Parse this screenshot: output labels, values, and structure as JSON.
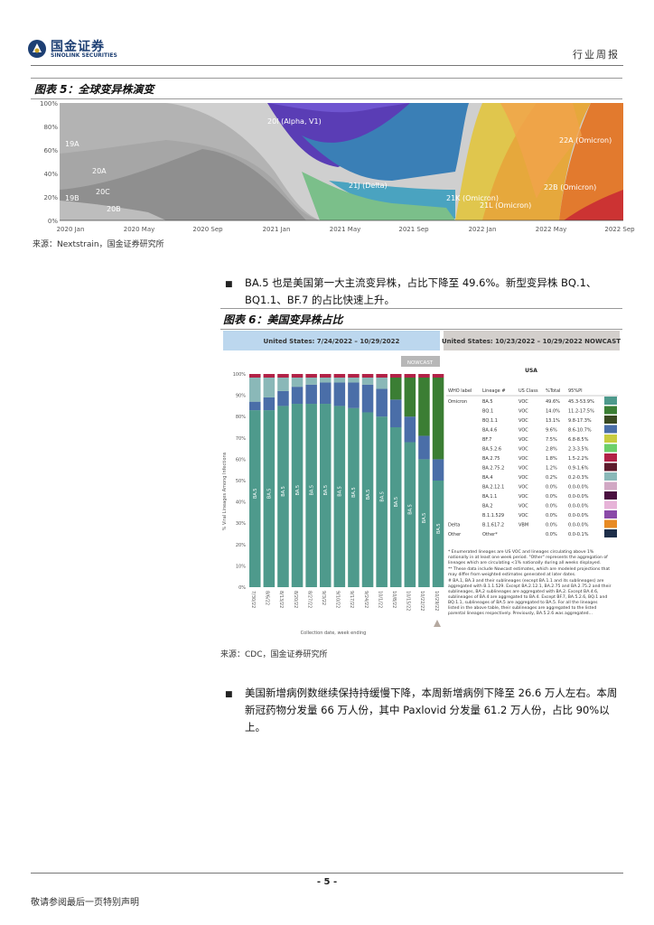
{
  "header": {
    "logo_cn": "国金证券",
    "logo_en": "SINOLINK SECURITIES",
    "report_type": "行业周报"
  },
  "fig5": {
    "title": "图表 5：全球变异株演变",
    "source": "来源：Nextstrain，国金证券研究所",
    "y_ticks": [
      "100%",
      "80%",
      "60%",
      "40%",
      "20%",
      "0%"
    ],
    "x_ticks": [
      "2020 Jan",
      "2020 May",
      "2020 Sep",
      "2021 Jan",
      "2021 May",
      "2021 Sep",
      "2022 Jan",
      "2022 May",
      "2022 Sep"
    ],
    "labels": [
      "19A",
      "19B",
      "20A",
      "20C",
      "20B",
      "20I (Alpha, V1)",
      "21J (Delta)",
      "21K (Omicron)",
      "21L (Omicron)",
      "22A (Omicron)",
      "22B (Omicron)"
    ]
  },
  "bullet1": "BA.5 也是美国第一大主流变异株，占比下降至 49.6%。新型变异株 BQ.1、BQ1.1、BF.7 的占比快速上升。",
  "fig6": {
    "title": "图表 6：美国变异株占比",
    "source": "来源：CDC，国金证券研究所",
    "left_header": "United States: 7/24/2022 – 10/29/2022",
    "right_header": "United States: 10/23/2022 – 10/29/2022 NOWCAST",
    "nowcast_tag": "NOWCAST",
    "y_ticks": [
      "100%",
      "90%",
      "80%",
      "70%",
      "60%",
      "50%",
      "40%",
      "30%",
      "20%",
      "10%",
      "0%"
    ],
    "y_axis_label": "% Viral Lineages Among Infections",
    "x_axis_label": "Collection date, week ending",
    "dates": [
      "7/30/22",
      "8/6/22",
      "8/13/22",
      "8/20/22",
      "8/27/22",
      "9/3/22",
      "9/10/22",
      "9/17/22",
      "9/24/22",
      "10/1/22",
      "10/8/22",
      "10/15/22",
      "10/22/22",
      "10/29/22"
    ],
    "bar_labels": [
      "BA.4",
      "BA.4.6",
      "BA.4.6",
      "BA.4.6",
      "BA.4.6",
      "BA.4.6",
      "BA.4.6",
      "BA.4.6",
      "BA.4.6",
      "BA.4.6",
      "BQ.1.1",
      "BF.7",
      "BQ.1",
      "BA.4.6",
      "BA.5",
      "BA.5",
      "BA.5",
      "BA.5",
      "BA.5",
      "BA.5",
      "BA.5",
      "BA.5",
      "BA.5",
      "BA.5",
      "BA.5",
      "BA.5",
      "BA.5"
    ],
    "table": {
      "region": "USA",
      "columns": [
        "WHO label",
        "Lineage #",
        "US Class",
        "%Total",
        "95%PI"
      ],
      "rows": [
        {
          "who": "Omicron",
          "lineage": "BA.5",
          "cls": "VOC",
          "pct": "49.6%",
          "pi": "45.3-53.9%",
          "color": "#4e9a8c"
        },
        {
          "who": "",
          "lineage": "BQ.1",
          "cls": "VOC",
          "pct": "14.0%",
          "pi": "11.2-17.5%",
          "color": "#3b7e34"
        },
        {
          "who": "",
          "lineage": "BQ.1.1",
          "cls": "VOC",
          "pct": "13.1%",
          "pi": "9.8-17.3%",
          "color": "#3a4a21"
        },
        {
          "who": "",
          "lineage": "BA.4.6",
          "cls": "VOC",
          "pct": "9.6%",
          "pi": "8.6-10.7%",
          "color": "#4a6ea8"
        },
        {
          "who": "",
          "lineage": "BF.7",
          "cls": "VOC",
          "pct": "7.5%",
          "pi": "6.8-8.5%",
          "color": "#c8cc40"
        },
        {
          "who": "",
          "lineage": "BA.5.2.6",
          "cls": "VOC",
          "pct": "2.8%",
          "pi": "2.3-3.5%",
          "color": "#6ccf6a"
        },
        {
          "who": "",
          "lineage": "BA.2.75",
          "cls": "VOC",
          "pct": "1.8%",
          "pi": "1.5-2.2%",
          "color": "#b22247"
        },
        {
          "who": "",
          "lineage": "BA.2.75.2",
          "cls": "VOC",
          "pct": "1.2%",
          "pi": "0.9-1.6%",
          "color": "#5d1a2b"
        },
        {
          "who": "",
          "lineage": "BA.4",
          "cls": "VOC",
          "pct": "0.2%",
          "pi": "0.2-0.3%",
          "color": "#8ab8b8"
        },
        {
          "who": "",
          "lineage": "BA.2.12.1",
          "cls": "VOC",
          "pct": "0.0%",
          "pi": "0.0-0.0%",
          "color": "#d1a8c4"
        },
        {
          "who": "",
          "lineage": "BA.1.1",
          "cls": "VOC",
          "pct": "0.0%",
          "pi": "0.0-0.0%",
          "color": "#4a1040"
        },
        {
          "who": "",
          "lineage": "BA.2",
          "cls": "VOC",
          "pct": "0.0%",
          "pi": "0.0-0.0%",
          "color": "#e7b3d8"
        },
        {
          "who": "",
          "lineage": "B.1.1.529",
          "cls": "VOC",
          "pct": "0.0%",
          "pi": "0.0-0.0%",
          "color": "#8a4aa8"
        },
        {
          "who": "Delta",
          "lineage": "B.1.617.2",
          "cls": "VBM",
          "pct": "0.0%",
          "pi": "0.0-0.0%",
          "color": "#e88b24"
        },
        {
          "who": "Other",
          "lineage": "Other*",
          "cls": "",
          "pct": "0.0%",
          "pi": "0.0-0.1%",
          "color": "#1e2f4a"
        }
      ],
      "notes": [
        "*    Enumerated lineages are US VOC and lineages circulating above 1% nationally in at least one week period. \"Other\" represents the aggregation of lineages which are circulating <1% nationally during all weeks displayed.",
        "**   These data include Nowcast estimates, which are modeled projections that may differ from weighted estimates generated at later dates.",
        "#    BA.1, BA.3 and their sublineages (except BA.1.1 and its sublineages) are aggregated with B.1.1.529. Except BA.2.12.1, BA.2.75 and BA.2.75.2 and their sublineages, BA.2 sublineages are aggregated with BA.2. Except BA.4.6, sublineages of BA.4 are aggregated to BA.4. Except BF.7, BA.5.2.6, BQ.1 and BQ.1.1, sublineages of BA.5 are aggregated to BA.5. For all the lineages listed in the above table, their sublineages are aggregated to the listed parental lineages respectively. Previously, BA.5.2.6 was aggregated..."
      ]
    }
  },
  "bullet2": "美国新增病例数继续保持持缓慢下降，本周新增病例下降至 26.6 万人左右。本周新冠药物分发量 66 万人份，其中 Paxlovid 分发量 61.2 万人份，占比 90%以上。",
  "page_number": "- 5 -",
  "footer": "敬请参阅最后一页特别声明"
}
